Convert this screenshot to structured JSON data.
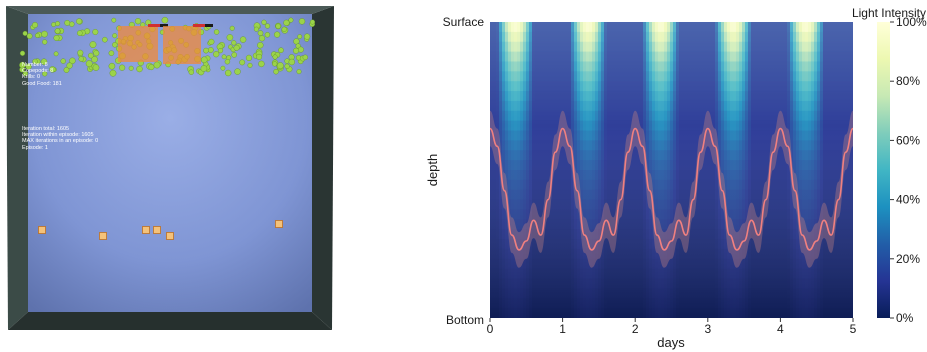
{
  "simulation": {
    "stats": {
      "lines": [
        "Number: 8",
        "Copepods: 8",
        "Krills: 0",
        "Good Food: 181"
      ]
    },
    "iterations": {
      "lines": [
        "Iteration total: 1605",
        "Iteration within episode: 1605",
        "MAX iterations in an episode: 0",
        "Episode: 1"
      ]
    },
    "colors": {
      "water": "#7f95d4",
      "wall": "#2f3c3a",
      "food": "#9bd34a",
      "agent": "#f08a3a",
      "bait": "#f4c27a"
    }
  },
  "chart_data": {
    "type": "heatmap",
    "title": "",
    "xlabel": "days",
    "ylabel": "depth",
    "x_ticks": [
      "0",
      "1",
      "2",
      "3",
      "4",
      "5"
    ],
    "xlim": [
      0,
      5
    ],
    "y_ticks": [
      "Surface",
      "Bottom"
    ],
    "colorbar": {
      "label": "Light Intensity",
      "ticks": [
        "0%",
        "20%",
        "40%",
        "60%",
        "80%",
        "100%"
      ],
      "range": [
        0,
        100
      ],
      "colormap": [
        "#081d58",
        "#253494",
        "#225ea8",
        "#1d91c0",
        "#41b6c4",
        "#7fcdbb",
        "#c7e9b4",
        "#edf8b1",
        "#ffffd9"
      ]
    },
    "light_period_days": 1,
    "series": [
      {
        "name": "",
        "color": "#f08080",
        "x": [
          0,
          0.1,
          0.2,
          0.3,
          0.4,
          0.5,
          0.6,
          0.7,
          0.8,
          0.9,
          1.0
        ],
        "depth_fraction": [
          0.36,
          0.42,
          0.57,
          0.72,
          0.77,
          0.74,
          0.67,
          0.72,
          0.6,
          0.44,
          0.36
        ],
        "band": 0.06
      }
    ]
  }
}
